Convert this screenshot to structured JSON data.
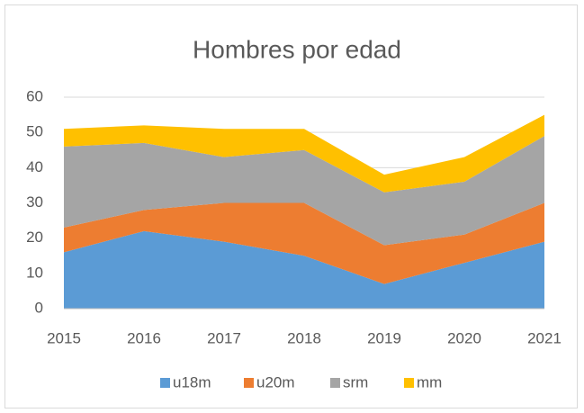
{
  "chart_data": {
    "type": "stacked_area",
    "title": "Hombres por edad",
    "categories": [
      "2015",
      "2016",
      "2017",
      "2018",
      "2019",
      "2020",
      "2021"
    ],
    "series": [
      {
        "name": "u18m",
        "color": "#5b9bd5",
        "values": [
          16,
          22,
          19,
          15,
          7,
          13,
          19
        ]
      },
      {
        "name": "u20m",
        "color": "#ed7d31",
        "values": [
          7,
          6,
          11,
          15,
          11,
          8,
          11
        ]
      },
      {
        "name": "srm",
        "color": "#a5a5a5",
        "values": [
          23,
          19,
          13,
          15,
          15,
          15,
          19
        ]
      },
      {
        "name": "mm",
        "color": "#ffc000",
        "values": [
          5,
          5,
          8,
          6,
          5,
          7,
          6
        ]
      }
    ],
    "ylim": [
      0,
      60
    ],
    "yticks": [
      0,
      10,
      20,
      30,
      40,
      50,
      60
    ],
    "grid": true,
    "legend": "bottom"
  }
}
